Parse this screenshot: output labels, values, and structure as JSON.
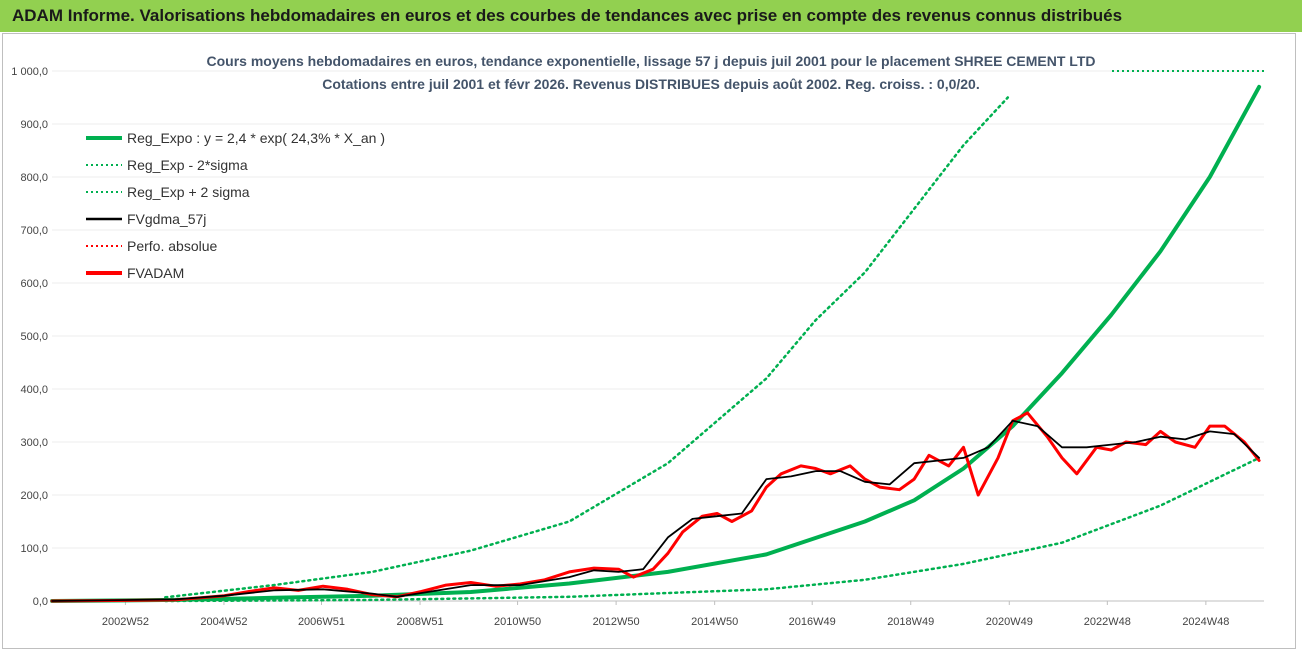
{
  "header": {
    "banner": "ADAM Informe. Valorisations hebdomadaires en euros et des courbes de tendances avec prise en compte des revenus connus distribués"
  },
  "chart_data": {
    "type": "line",
    "title": "Cours moyens hebdomadaires en euros, tendance exponentielle, lissage 57 j depuis juil 2001 pour le placement SHREE CEMENT LTD",
    "subtitle": "Cotations entre juil 2001 et févr 2026.  Revenus DISTRIBUES depuis août 2002. Reg. croiss. : 0,0/20.",
    "ylim": [
      0,
      1000
    ],
    "yticks": [
      "0,0",
      "100,0",
      "200,0",
      "300,0",
      "400,0",
      "500,0",
      "600,0",
      "700,0",
      "800,0",
      "900,0",
      "1 000,0"
    ],
    "xlim": [
      2001.5,
      2026.1
    ],
    "xticks": [
      {
        "label": "2002W52",
        "x": 2002.99
      },
      {
        "label": "2004W52",
        "x": 2004.99
      },
      {
        "label": "2006W51",
        "x": 2006.97
      },
      {
        "label": "2008W51",
        "x": 2008.97
      },
      {
        "label": "2010W50",
        "x": 2010.95
      },
      {
        "label": "2012W50",
        "x": 2012.95
      },
      {
        "label": "2014W50",
        "x": 2014.95
      },
      {
        "label": "2016W49",
        "x": 2016.93
      },
      {
        "label": "2018W49",
        "x": 2018.93
      },
      {
        "label": "2020W49",
        "x": 2020.93
      },
      {
        "label": "2022W48",
        "x": 2022.92
      },
      {
        "label": "2024W48",
        "x": 2024.92
      }
    ],
    "legend": [
      {
        "label": "Reg_Expo : y = 2,4 * exp( 24,3% *  X_an )",
        "color": "#00b050",
        "style": "solid-thick"
      },
      {
        "label": "Reg_Exp - 2*sigma",
        "color": "#00b050",
        "style": "dotted"
      },
      {
        "label": "Reg_Exp + 2 sigma",
        "color": "#00b050",
        "style": "dotted"
      },
      {
        "label": "FVgdma_57j",
        "color": "#000000",
        "style": "solid"
      },
      {
        "label": "Perfo. absolue",
        "color": "#ff0000",
        "style": "dotted"
      },
      {
        "label": "FVADAM",
        "color": "#ff0000",
        "style": "solid-thick"
      }
    ],
    "series": [
      {
        "name": "Reg_Expo",
        "color": "#00b050",
        "x": [
          2001.5,
          2004,
          2006,
          2008,
          2010,
          2012,
          2014,
          2016,
          2018,
          2019,
          2020,
          2021,
          2022,
          2023,
          2024,
          2025,
          2026
        ],
        "y": [
          0,
          2,
          6,
          10,
          17,
          33,
          55,
          88,
          150,
          190,
          250,
          330,
          430,
          540,
          660,
          800,
          970
        ]
      },
      {
        "name": "Reg_Exp - 2*sigma",
        "color": "#00b050",
        "x": [
          2003.8,
          2006,
          2008,
          2010,
          2012,
          2014,
          2016,
          2018,
          2020,
          2022,
          2024,
          2026
        ],
        "y": [
          0,
          1,
          2,
          5,
          8,
          15,
          22,
          40,
          70,
          110,
          180,
          270
        ]
      },
      {
        "name": "Reg_Exp + 2 sigma",
        "color": "#00b050",
        "x": [
          2003.8,
          2006,
          2008,
          2010,
          2012,
          2014,
          2016,
          2017,
          2018,
          2019,
          2020,
          2020.9
        ],
        "y": [
          7,
          30,
          55,
          95,
          150,
          260,
          420,
          530,
          620,
          740,
          860,
          950
        ]
      },
      {
        "name": "FVgdma_57j",
        "color": "#000000",
        "x": [
          2001.5,
          2004,
          2005,
          2006,
          2007,
          2008,
          2008.5,
          2009,
          2010,
          2011,
          2012,
          2012.5,
          2013,
          2013.5,
          2014,
          2014.5,
          2015,
          2015.5,
          2016,
          2016.5,
          2017,
          2017.5,
          2018,
          2018.5,
          2019,
          2019.5,
          2020,
          2020.5,
          2021,
          2021.5,
          2022,
          2022.5,
          2023,
          2023.5,
          2024,
          2024.5,
          2025,
          2025.5,
          2026
        ],
        "y": [
          0,
          3,
          10,
          20,
          22,
          14,
          8,
          15,
          30,
          30,
          45,
          58,
          55,
          60,
          120,
          155,
          160,
          165,
          230,
          235,
          245,
          245,
          225,
          220,
          260,
          265,
          270,
          290,
          340,
          330,
          290,
          290,
          295,
          300,
          310,
          305,
          320,
          315,
          270
        ]
      },
      {
        "name": "FVADAM",
        "color": "#ff0000",
        "x": [
          2001.5,
          2004,
          2005,
          2005.5,
          2006,
          2006.5,
          2007,
          2007.5,
          2008,
          2008.5,
          2009,
          2009.5,
          2010,
          2010.5,
          2011,
          2011.5,
          2012,
          2012.5,
          2013,
          2013.3,
          2013.7,
          2014,
          2014.3,
          2014.7,
          2015,
          2015.3,
          2015.7,
          2016,
          2016.3,
          2016.7,
          2017,
          2017.3,
          2017.7,
          2018,
          2018.3,
          2018.7,
          2019,
          2019.3,
          2019.7,
          2020,
          2020.3,
          2020.7,
          2021,
          2021.3,
          2021.7,
          2022,
          2022.3,
          2022.7,
          2023,
          2023.3,
          2023.7,
          2024,
          2024.3,
          2024.7,
          2025,
          2025.3,
          2025.7,
          2026
        ],
        "y": [
          0,
          2,
          10,
          18,
          25,
          20,
          28,
          22,
          12,
          8,
          18,
          30,
          35,
          28,
          32,
          40,
          55,
          62,
          60,
          45,
          60,
          90,
          130,
          160,
          165,
          150,
          170,
          215,
          240,
          255,
          250,
          240,
          255,
          230,
          215,
          210,
          230,
          275,
          255,
          290,
          200,
          270,
          340,
          355,
          310,
          270,
          240,
          290,
          285,
          300,
          295,
          320,
          300,
          290,
          330,
          330,
          300,
          265
        ]
      }
    ]
  }
}
